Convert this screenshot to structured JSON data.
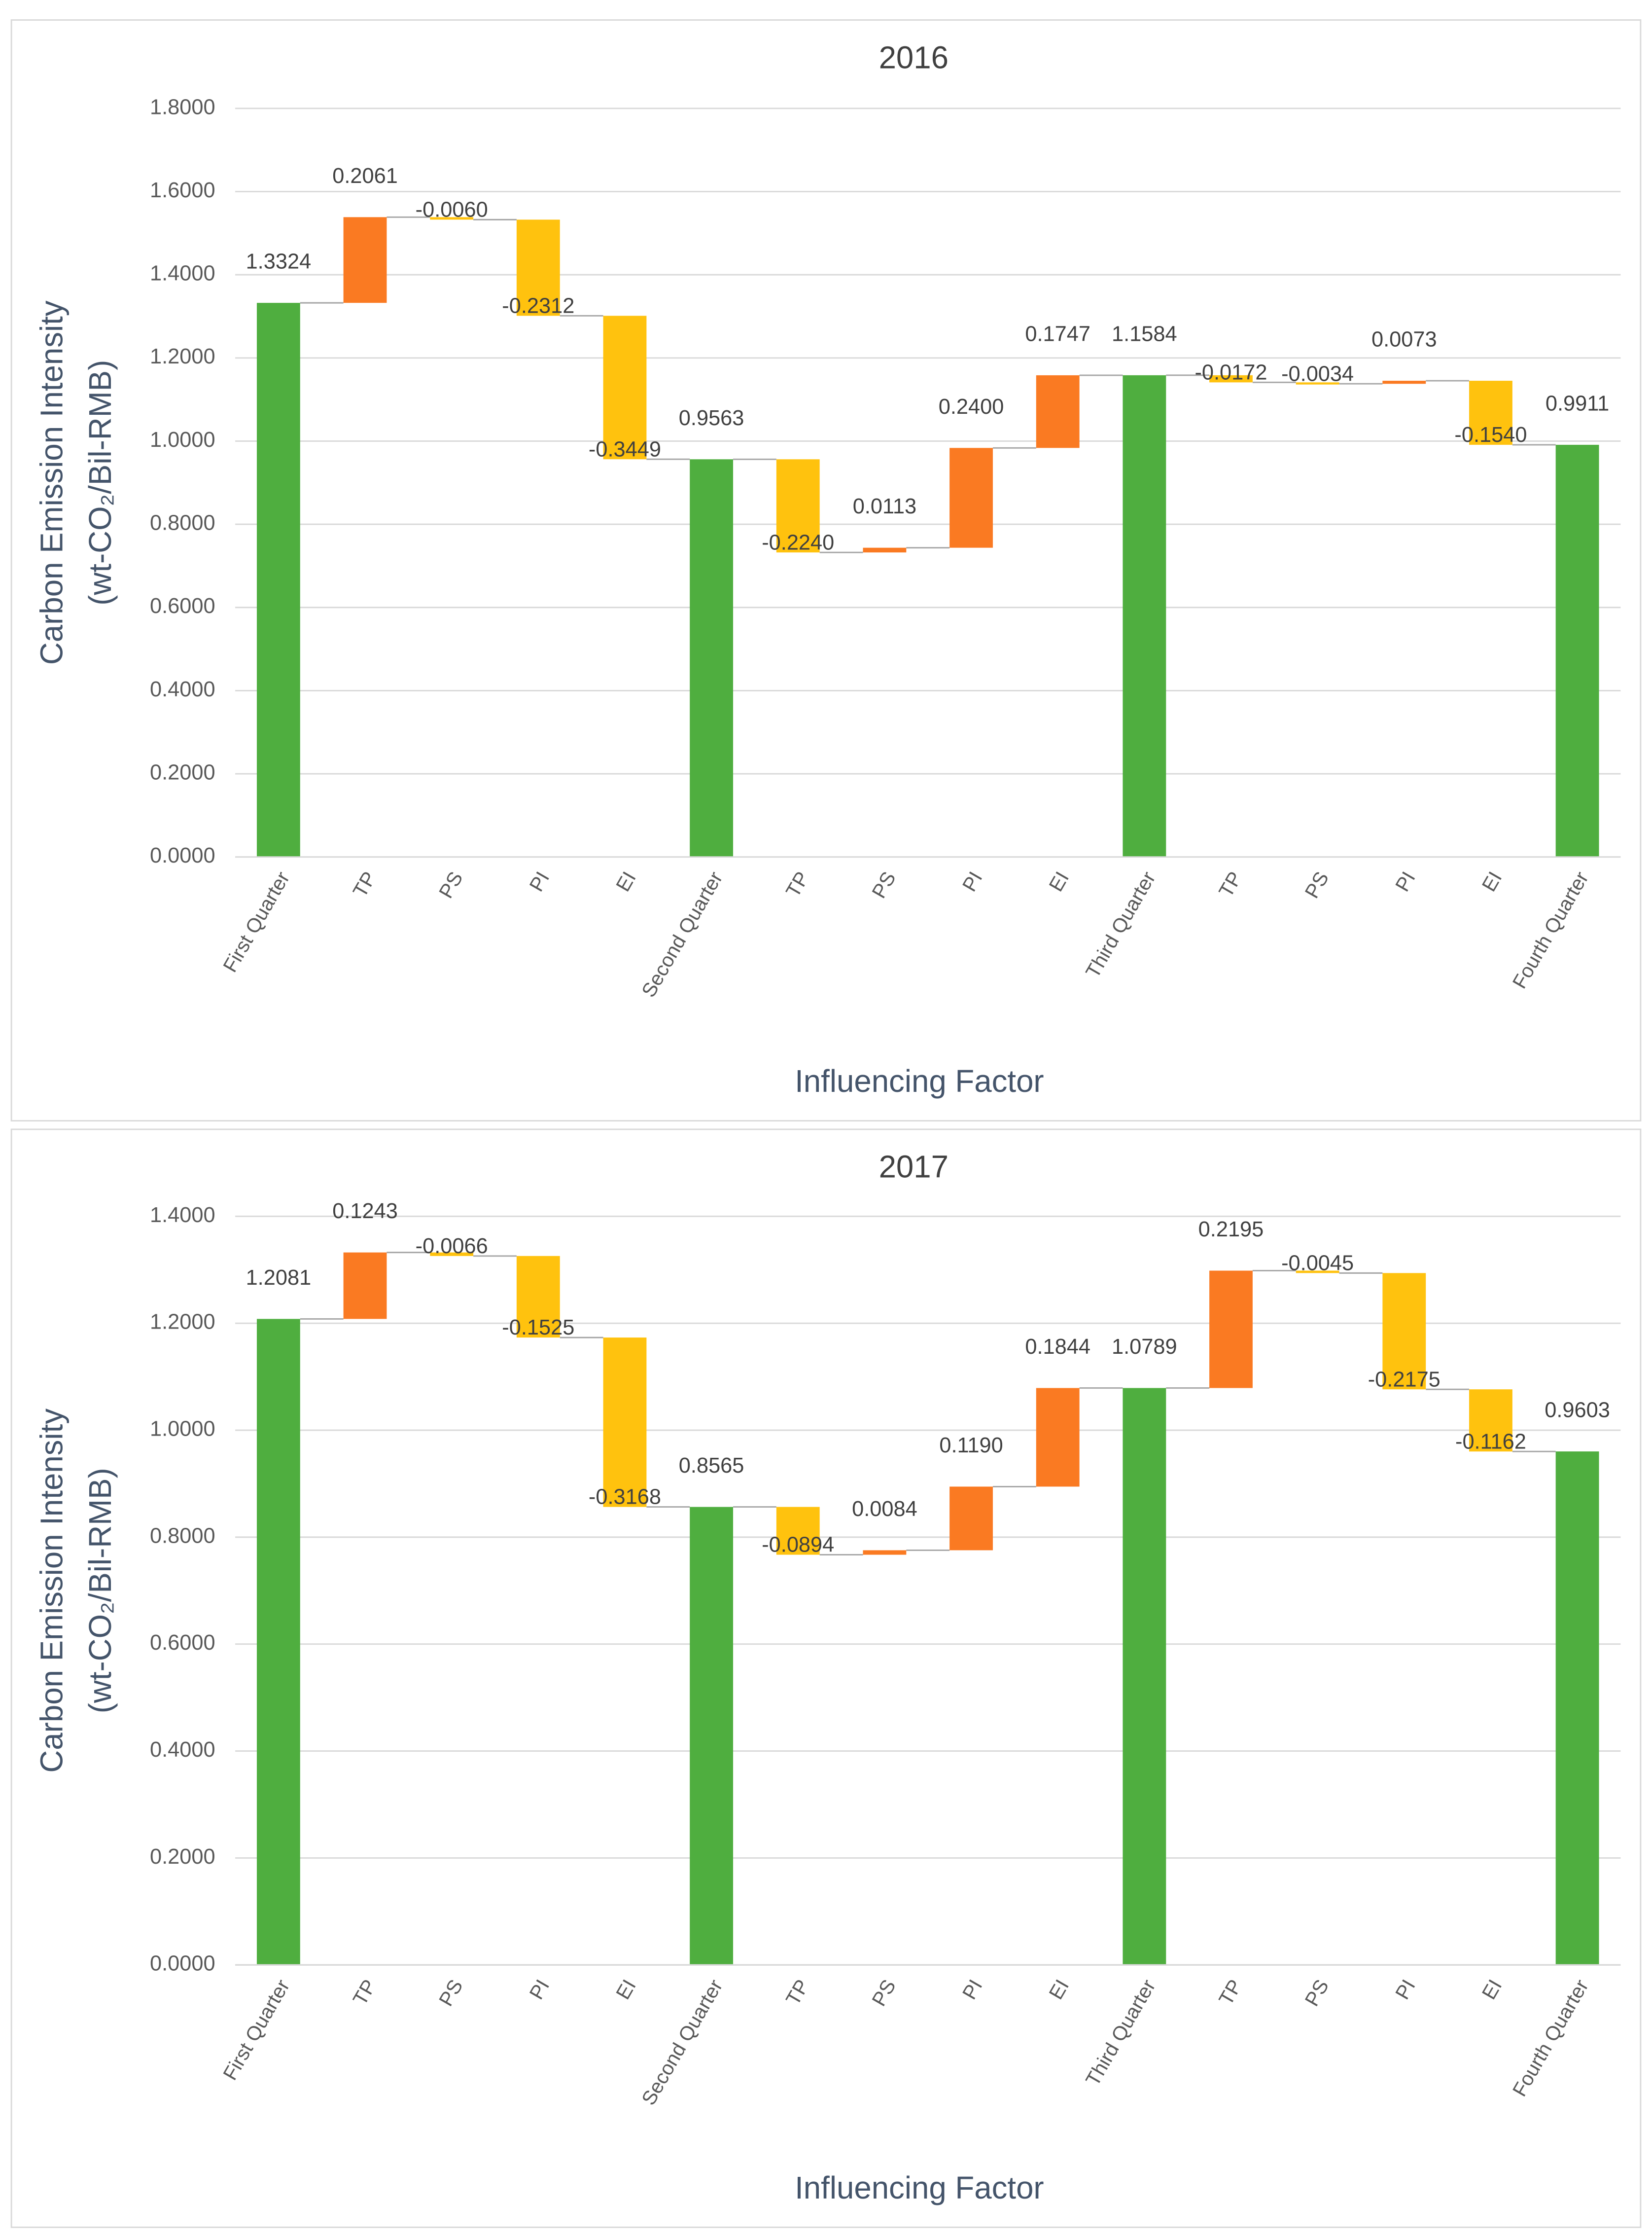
{
  "chart_data": [
    {
      "type": "waterfall",
      "title": "2016",
      "x_label": "Influencing Factor",
      "y_label": [
        "Carbon Emission Intensity",
        "(wt-CO₂/Bil-RMB)"
      ],
      "categories": [
        "First Quarter",
        "TP",
        "PS",
        "PI",
        "EI",
        "Second Quarter",
        "TP",
        "PS",
        "PI",
        "EI",
        "Third Quarter",
        "TP",
        "PS",
        "PI",
        "EI",
        "Fourth Quarter"
      ],
      "measure": [
        "total",
        "relative",
        "relative",
        "relative",
        "relative",
        "total",
        "relative",
        "relative",
        "relative",
        "relative",
        "total",
        "relative",
        "relative",
        "relative",
        "relative",
        "total"
      ],
      "values": [
        1.3324,
        0.2061,
        -0.006,
        -0.2312,
        -0.3449,
        0.9563,
        -0.224,
        0.0113,
        0.24,
        0.1747,
        1.1584,
        -0.0172,
        -0.0034,
        0.0073,
        -0.154,
        0.9911
      ],
      "value_labels": [
        "1.3324",
        "0.2061",
        "-0.0060",
        "-0.2312",
        "-0.3449",
        "0.9563",
        "-0.2240",
        "0.0113",
        "0.2400",
        "0.1747",
        "1.1584",
        "-0.0172",
        "-0.0034",
        "0.0073",
        "-0.1540",
        "0.9911"
      ],
      "colors": {
        "total": "#4fae3f",
        "increase": "#fa7a22",
        "decrease": "#ffc20e"
      },
      "ylim": [
        0,
        1.8
      ],
      "yticks": [
        {
          "value": 0,
          "label": "0.0000"
        },
        {
          "value": 0.2,
          "label": "0.2000"
        },
        {
          "value": 0.4,
          "label": "0.4000"
        },
        {
          "value": 0.6,
          "label": "0.6000"
        },
        {
          "value": 0.8,
          "label": "0.8000"
        },
        {
          "value": 1.0,
          "label": "1.0000"
        },
        {
          "value": 1.2,
          "label": "1.2000"
        },
        {
          "value": 1.4,
          "label": "1.4000"
        },
        {
          "value": 1.6,
          "label": "1.6000"
        },
        {
          "value": 1.8,
          "label": "1.8000"
        }
      ],
      "grid": true
    },
    {
      "type": "waterfall",
      "title": "2017",
      "x_label": "Influencing Factor",
      "y_label": [
        "Carbon Emission Intensity",
        "(wt-CO₂/Bil-RMB)"
      ],
      "categories": [
        "First Quarter",
        "TP",
        "PS",
        "PI",
        "EI",
        "Second Quarter",
        "TP",
        "PS",
        "PI",
        "EI",
        "Third Quarter",
        "TP",
        "PS",
        "PI",
        "EI",
        "Fourth Quarter"
      ],
      "measure": [
        "total",
        "relative",
        "relative",
        "relative",
        "relative",
        "total",
        "relative",
        "relative",
        "relative",
        "relative",
        "total",
        "relative",
        "relative",
        "relative",
        "relative",
        "total"
      ],
      "values": [
        1.2081,
        0.1243,
        -0.0066,
        -0.1525,
        -0.3168,
        0.8565,
        -0.0894,
        0.0084,
        0.119,
        0.1844,
        1.0789,
        0.2195,
        -0.0045,
        -0.2175,
        -0.1162,
        0.9603
      ],
      "value_labels": [
        "1.2081",
        "0.1243",
        "-0.0066",
        "-0.1525",
        "-0.3168",
        "0.8565",
        "-0.0894",
        "0.0084",
        "0.1190",
        "0.1844",
        "1.0789",
        "0.2195",
        "-0.0045",
        "-0.2175",
        "-0.1162",
        "0.9603"
      ],
      "colors": {
        "total": "#4fae3f",
        "increase": "#fa7a22",
        "decrease": "#ffc20e"
      },
      "ylim": [
        0,
        1.4
      ],
      "yticks": [
        {
          "value": 0,
          "label": "0.0000"
        },
        {
          "value": 0.2,
          "label": "0.2000"
        },
        {
          "value": 0.4,
          "label": "0.4000"
        },
        {
          "value": 0.6,
          "label": "0.6000"
        },
        {
          "value": 0.8,
          "label": "0.8000"
        },
        {
          "value": 1.0,
          "label": "1.0000"
        },
        {
          "value": 1.2,
          "label": "1.2000"
        },
        {
          "value": 1.4,
          "label": "1.4000"
        }
      ],
      "grid": true
    }
  ]
}
